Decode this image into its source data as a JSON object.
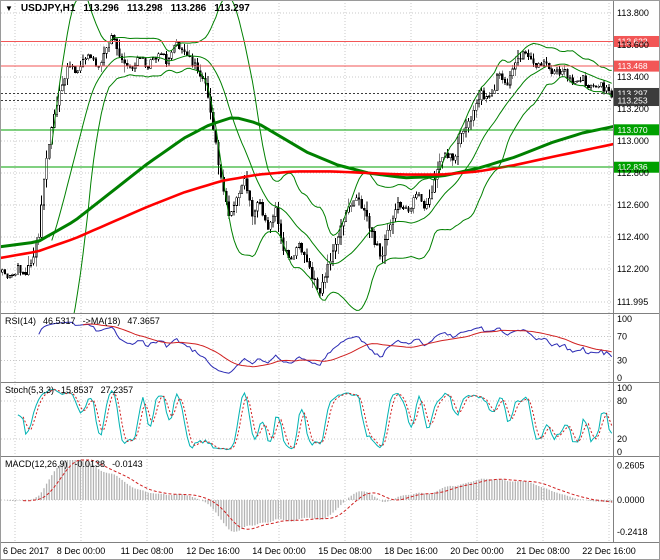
{
  "colors": {
    "background": "#ffffff",
    "grid": "#c8c8c8",
    "separator": "#808080",
    "candle_outline": "#000000",
    "bull_fill": "#ffffff",
    "bear_fill": "#000000",
    "bollinger": "#008000",
    "ma_green": "#008000",
    "ma_red": "#ff0000",
    "hline_red": "#f25656",
    "hline_green": "#00a000",
    "hline_dark": "#3c3c3c",
    "badge_text": "#ffffff",
    "axis_text": "#000000"
  },
  "icons": {
    "chart_menu": "▼"
  },
  "chart_data": [
    {
      "type": "candlestick",
      "title": "USDJPY,H1",
      "ohlc_header": {
        "open": "113.296",
        "high": "113.298",
        "low": "113.286",
        "close": "113.297"
      },
      "ylim": [
        111.95,
        113.85
      ],
      "bars": 235,
      "y_ticks": [
        {
          "label": "113.800",
          "value": 113.8
        },
        {
          "label": "113.600",
          "value": 113.6
        },
        {
          "label": "113.400",
          "value": 113.4
        },
        {
          "label": "113.200",
          "value": 113.2
        },
        {
          "label": "113.000",
          "value": 113.0
        },
        {
          "label": "112.800",
          "value": 112.8
        },
        {
          "label": "112.600",
          "value": 112.6
        },
        {
          "label": "112.400",
          "value": 112.4
        },
        {
          "label": "112.200",
          "value": 112.2
        },
        {
          "label": "111.995",
          "value": 111.995
        }
      ],
      "x_ticks": [
        "6 Dec 2017",
        "8 Dec 00:00",
        "11 Dec 08:00",
        "12 Dec 16:00",
        "14 Dec 00:00",
        "15 Dec 08:00",
        "18 Dec 16:00",
        "20 Dec 00:00",
        "21 Dec 08:00",
        "22 Dec 16:00"
      ],
      "price_path": [
        [
          0.0,
          112.18
        ],
        [
          0.012,
          112.13
        ],
        [
          0.025,
          112.2
        ],
        [
          0.038,
          112.16
        ],
        [
          0.05,
          112.26
        ],
        [
          0.06,
          112.42
        ],
        [
          0.07,
          112.82
        ],
        [
          0.082,
          113.12
        ],
        [
          0.095,
          113.32
        ],
        [
          0.11,
          113.48
        ],
        [
          0.125,
          113.42
        ],
        [
          0.14,
          113.55
        ],
        [
          0.155,
          113.46
        ],
        [
          0.17,
          113.56
        ],
        [
          0.182,
          113.66
        ],
        [
          0.195,
          113.52
        ],
        [
          0.21,
          113.44
        ],
        [
          0.225,
          113.52
        ],
        [
          0.24,
          113.47
        ],
        [
          0.255,
          113.55
        ],
        [
          0.27,
          113.5
        ],
        [
          0.285,
          113.62
        ],
        [
          0.3,
          113.55
        ],
        [
          0.315,
          113.48
        ],
        [
          0.33,
          113.4
        ],
        [
          0.345,
          113.12
        ],
        [
          0.36,
          112.74
        ],
        [
          0.372,
          112.52
        ],
        [
          0.385,
          112.66
        ],
        [
          0.398,
          112.76
        ],
        [
          0.41,
          112.55
        ],
        [
          0.422,
          112.62
        ],
        [
          0.435,
          112.46
        ],
        [
          0.448,
          112.58
        ],
        [
          0.46,
          112.35
        ],
        [
          0.472,
          112.24
        ],
        [
          0.485,
          112.36
        ],
        [
          0.498,
          112.28
        ],
        [
          0.51,
          112.14
        ],
        [
          0.522,
          112.06
        ],
        [
          0.535,
          112.22
        ],
        [
          0.55,
          112.4
        ],
        [
          0.565,
          112.58
        ],
        [
          0.58,
          112.66
        ],
        [
          0.595,
          112.55
        ],
        [
          0.61,
          112.38
        ],
        [
          0.622,
          112.28
        ],
        [
          0.635,
          112.48
        ],
        [
          0.65,
          112.63
        ],
        [
          0.665,
          112.55
        ],
        [
          0.68,
          112.68
        ],
        [
          0.695,
          112.58
        ],
        [
          0.71,
          112.75
        ],
        [
          0.725,
          112.94
        ],
        [
          0.74,
          112.88
        ],
        [
          0.755,
          113.06
        ],
        [
          0.77,
          113.14
        ],
        [
          0.785,
          113.3
        ],
        [
          0.8,
          113.26
        ],
        [
          0.815,
          113.42
        ],
        [
          0.83,
          113.36
        ],
        [
          0.845,
          113.52
        ],
        [
          0.86,
          113.56
        ],
        [
          0.875,
          113.46
        ],
        [
          0.89,
          113.5
        ],
        [
          0.905,
          113.42
        ],
        [
          0.92,
          113.44
        ],
        [
          0.935,
          113.37
        ],
        [
          0.95,
          113.4
        ],
        [
          0.965,
          113.33
        ],
        [
          0.98,
          113.36
        ],
        [
          1.0,
          113.297
        ]
      ],
      "overlays": [
        {
          "name": "bollinger-bands",
          "period": 20,
          "deviation": 2,
          "color": "#008000"
        },
        {
          "name": "ma-green",
          "color": "#008000",
          "width": 3,
          "points": [
            [
              0.0,
              112.34
            ],
            [
              0.06,
              112.37
            ],
            [
              0.12,
              112.5
            ],
            [
              0.18,
              112.68
            ],
            [
              0.24,
              112.86
            ],
            [
              0.3,
              113.02
            ],
            [
              0.34,
              113.1
            ],
            [
              0.38,
              113.15
            ],
            [
              0.42,
              113.11
            ],
            [
              0.46,
              113.02
            ],
            [
              0.5,
              112.93
            ],
            [
              0.55,
              112.85
            ],
            [
              0.6,
              112.8
            ],
            [
              0.66,
              112.77
            ],
            [
              0.72,
              112.78
            ],
            [
              0.78,
              112.83
            ],
            [
              0.84,
              112.9
            ],
            [
              0.9,
              112.99
            ],
            [
              0.95,
              113.05
            ],
            [
              1.0,
              113.09
            ]
          ]
        },
        {
          "name": "ma-red",
          "color": "#ff0000",
          "width": 2.6,
          "points": [
            [
              0.0,
              112.27
            ],
            [
              0.06,
              112.31
            ],
            [
              0.12,
              112.39
            ],
            [
              0.18,
              112.49
            ],
            [
              0.24,
              112.59
            ],
            [
              0.3,
              112.68
            ],
            [
              0.36,
              112.75
            ],
            [
              0.42,
              112.79
            ],
            [
              0.48,
              112.81
            ],
            [
              0.54,
              112.81
            ],
            [
              0.6,
              112.8
            ],
            [
              0.66,
              112.79
            ],
            [
              0.72,
              112.79
            ],
            [
              0.78,
              112.81
            ],
            [
              0.84,
              112.85
            ],
            [
              0.9,
              112.9
            ],
            [
              0.95,
              112.94
            ],
            [
              1.0,
              112.98
            ]
          ]
        }
      ],
      "hlines": [
        {
          "label": "113.622",
          "value": 113.622,
          "color": "#f25656",
          "style": "solid"
        },
        {
          "label": "113.468",
          "value": 113.468,
          "color": "#f25656",
          "style": "solid"
        },
        {
          "label": "113.297",
          "value": 113.297,
          "color": "#3c3c3c",
          "style": "dotted"
        },
        {
          "label": "113.253",
          "value": 113.253,
          "color": "#3c3c3c",
          "style": "dotted"
        },
        {
          "label": "113.070",
          "value": 113.07,
          "color": "#00a000",
          "style": "solid"
        },
        {
          "label": "112.836",
          "value": 112.836,
          "color": "#00a000",
          "style": "solid"
        }
      ]
    },
    {
      "type": "line",
      "label": "RSI(14)",
      "value": "46.5317",
      "ma_label": "->MA(18)",
      "ma_value": "47.3657",
      "range": [
        0,
        100
      ],
      "levels": [
        {
          "label": "100",
          "value": 100
        },
        {
          "label": "70",
          "value": 70
        },
        {
          "label": "30",
          "value": 30
        },
        {
          "label": "0",
          "value": 0
        }
      ],
      "colors": {
        "main": "#2b2bb4",
        "ma": "#d02020"
      }
    },
    {
      "type": "line",
      "label": "Stoch(5,3,3)",
      "value": "15.8537",
      "signal_value": "27.2357",
      "range": [
        0,
        100
      ],
      "levels": [
        {
          "label": "100",
          "value": 100
        },
        {
          "label": "80",
          "value": 80
        },
        {
          "label": "20",
          "value": 20
        },
        {
          "label": "0",
          "value": 0
        }
      ],
      "colors": {
        "main": "#00b3b3",
        "signal": "#d02020"
      }
    },
    {
      "type": "macd",
      "label": "MACD(12,26,9)",
      "value": "-0.0138",
      "signal_value": "-0.0143",
      "axis_labels": [
        {
          "label": "0.2605",
          "value": 0.2605
        },
        {
          "label": "0.0000",
          "value": 0
        },
        {
          "label": "-0.2418",
          "value": -0.2418
        }
      ],
      "colors": {
        "hist": "#b4b4b4",
        "signal": "#d02020"
      }
    }
  ]
}
